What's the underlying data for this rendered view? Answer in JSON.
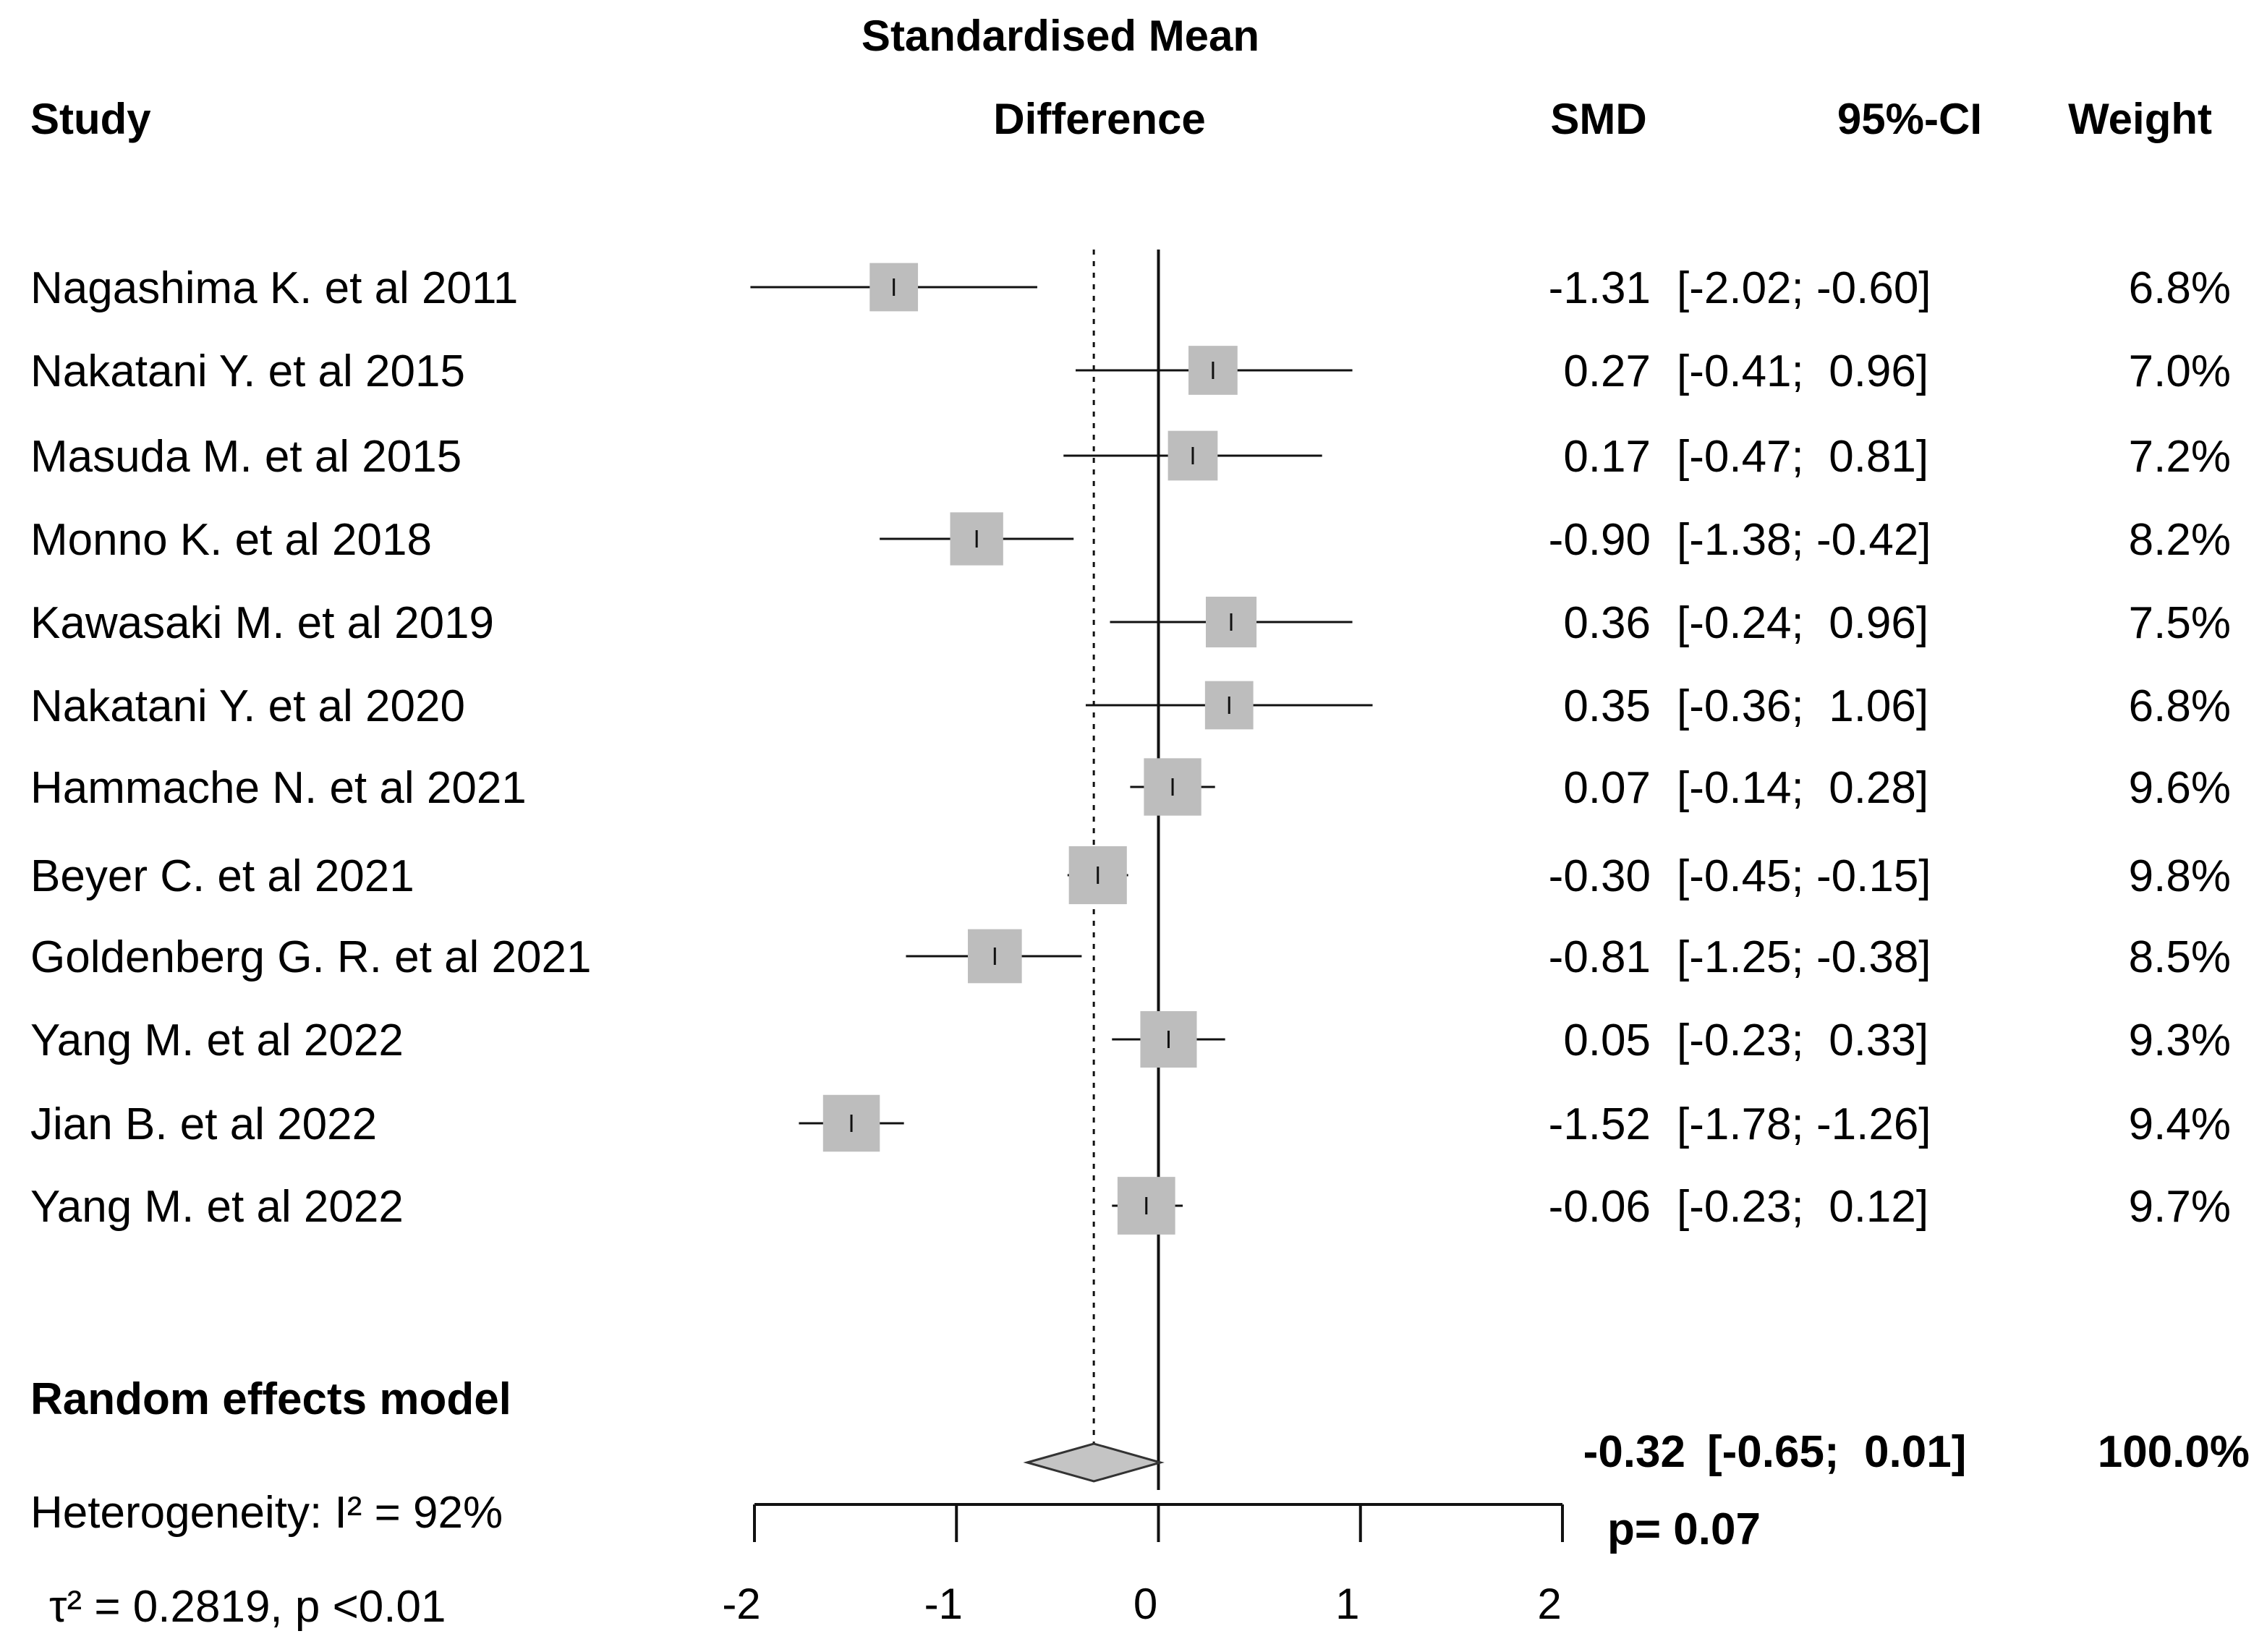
{
  "chart_data": {
    "type": "forest",
    "header": {
      "study": "Study",
      "plot_title_line1": "Standardised Mean",
      "plot_title_line2": "Difference",
      "smd": "SMD",
      "ci": "95%-CI",
      "weight": "Weight"
    },
    "studies": [
      {
        "label": "Nagashima K. et al 2011",
        "smd": -1.31,
        "lo": -2.02,
        "hi": -0.6,
        "smd_text": "-1.31",
        "ci_text": "[-2.02; -0.60]",
        "weight": 6.8,
        "weight_text": "6.8%"
      },
      {
        "label": "Nakatani Y. et al 2015",
        "smd": 0.27,
        "lo": -0.41,
        "hi": 0.96,
        "smd_text": "0.27",
        "ci_text": "[-0.41;  0.96]",
        "weight": 7.0,
        "weight_text": "7.0%"
      },
      {
        "label": "Masuda M. et al 2015",
        "smd": 0.17,
        "lo": -0.47,
        "hi": 0.81,
        "smd_text": "0.17",
        "ci_text": "[-0.47;  0.81]",
        "weight": 7.2,
        "weight_text": "7.2%"
      },
      {
        "label": "Monno K. et al 2018",
        "smd": -0.9,
        "lo": -1.38,
        "hi": -0.42,
        "smd_text": "-0.90",
        "ci_text": "[-1.38; -0.42]",
        "weight": 8.2,
        "weight_text": "8.2%"
      },
      {
        "label": "Kawasaki M. et al 2019",
        "smd": 0.36,
        "lo": -0.24,
        "hi": 0.96,
        "smd_text": "0.36",
        "ci_text": "[-0.24;  0.96]",
        "weight": 7.5,
        "weight_text": "7.5%"
      },
      {
        "label": "Nakatani Y. et al 2020",
        "smd": 0.35,
        "lo": -0.36,
        "hi": 1.06,
        "smd_text": "0.35",
        "ci_text": "[-0.36;  1.06]",
        "weight": 6.8,
        "weight_text": "6.8%"
      },
      {
        "label": "Hammache N. et al 2021",
        "smd": 0.07,
        "lo": -0.14,
        "hi": 0.28,
        "smd_text": "0.07",
        "ci_text": "[-0.14;  0.28]",
        "weight": 9.6,
        "weight_text": "9.6%"
      },
      {
        "label": "Beyer C. et al 2021",
        "smd": -0.3,
        "lo": -0.45,
        "hi": -0.15,
        "smd_text": "-0.30",
        "ci_text": "[-0.45; -0.15]",
        "weight": 9.8,
        "weight_text": "9.8%"
      },
      {
        "label": "Goldenberg G. R. et al 2021",
        "smd": -0.81,
        "lo": -1.25,
        "hi": -0.38,
        "smd_text": "-0.81",
        "ci_text": "[-1.25; -0.38]",
        "weight": 8.5,
        "weight_text": "8.5%"
      },
      {
        "label": "Yang M. et al 2022",
        "smd": 0.05,
        "lo": -0.23,
        "hi": 0.33,
        "smd_text": "0.05",
        "ci_text": "[-0.23;  0.33]",
        "weight": 9.3,
        "weight_text": "9.3%"
      },
      {
        "label": "Jian B. et al 2022",
        "smd": -1.52,
        "lo": -1.78,
        "hi": -1.26,
        "smd_text": "-1.52",
        "ci_text": "[-1.78; -1.26]",
        "weight": 9.4,
        "weight_text": "9.4%"
      },
      {
        "label": "Yang M. et al 2022",
        "smd": -0.06,
        "lo": -0.23,
        "hi": 0.12,
        "smd_text": "-0.06",
        "ci_text": "[-0.23;  0.12]",
        "weight": 9.7,
        "weight_text": "9.7%"
      }
    ],
    "pooled": {
      "label": "Random effects model",
      "smd": -0.32,
      "lo": -0.65,
      "hi": 0.01,
      "smd_text": "-0.32",
      "ci_text": "[-0.65;  0.01]",
      "weight_text": "100.0%",
      "p_text": "p= 0.07"
    },
    "heterogeneity": {
      "line1": "Heterogeneity: I² = 92%",
      "line2": "τ² = 0.2819, p <0.01"
    },
    "x_axis": {
      "min": -2,
      "max": 2,
      "ticks": [
        -2,
        -1,
        0,
        1,
        2
      ],
      "tick_labels": [
        "-2",
        "-1",
        "0",
        "1",
        "2"
      ]
    },
    "no_effect_line": 0,
    "colors": {
      "box": "#bdbdbd",
      "diamond": "#c4c4c4",
      "line": "#111111"
    }
  }
}
